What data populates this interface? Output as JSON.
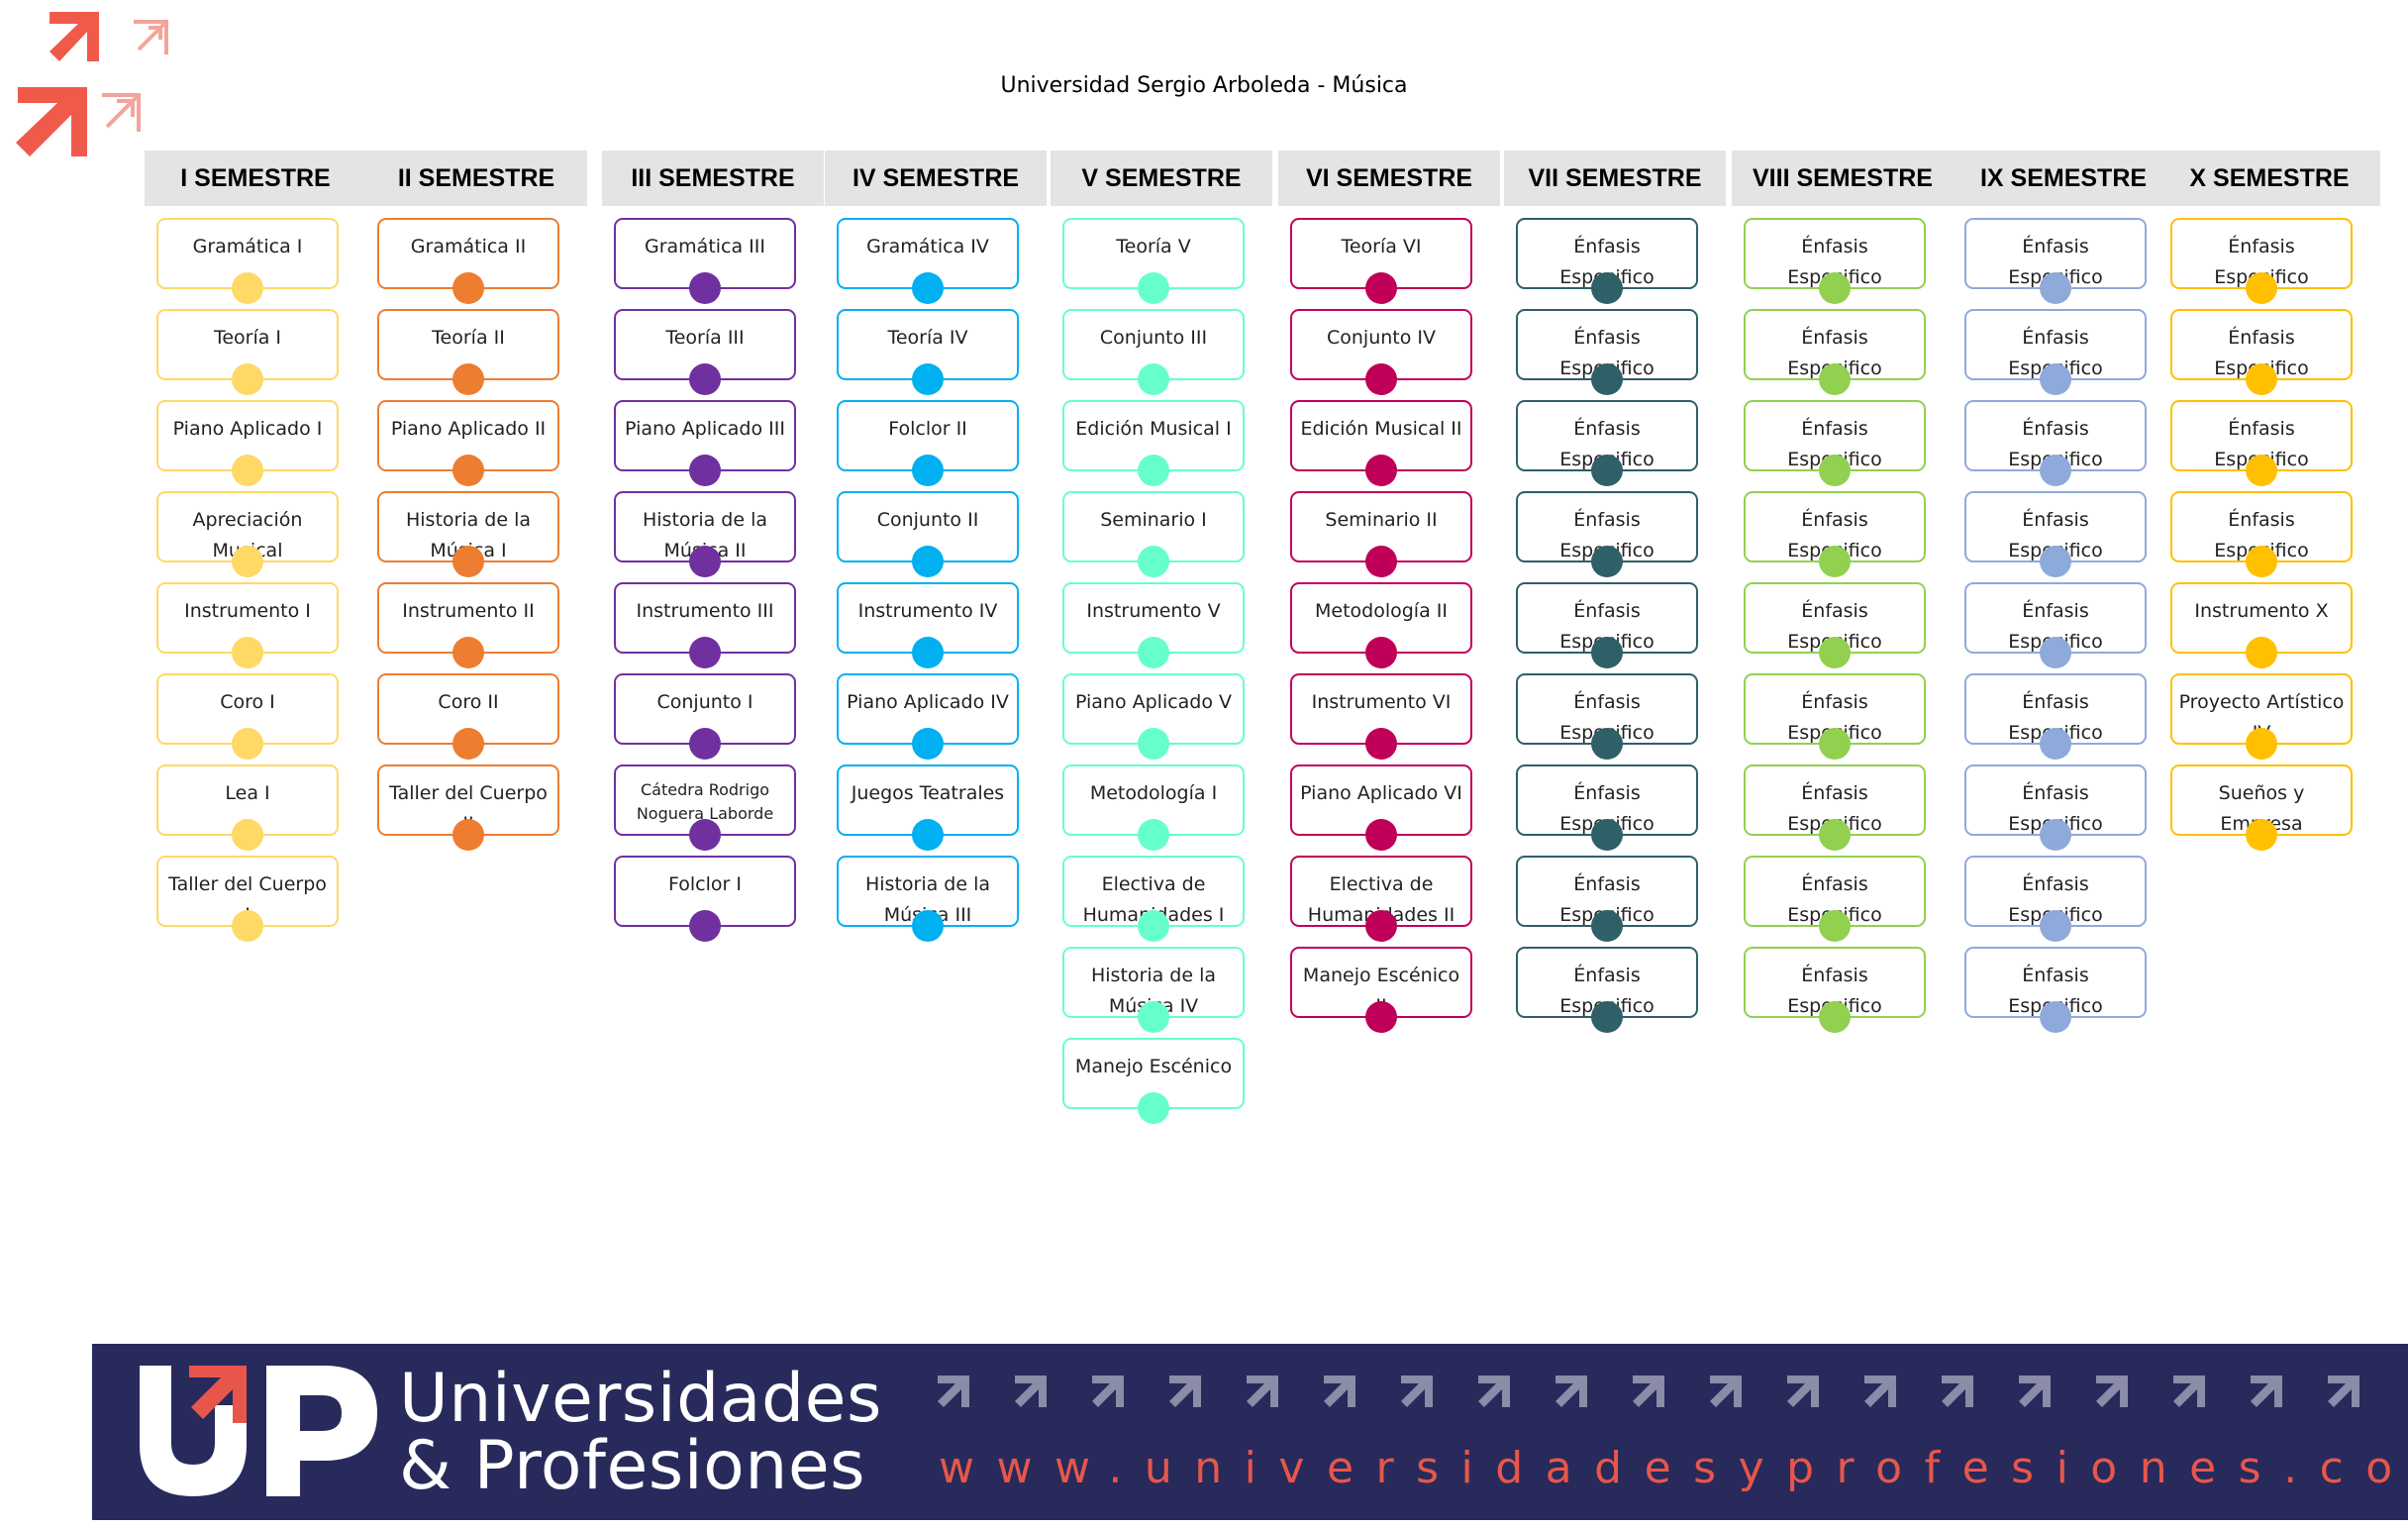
{
  "title": "Universidad Sergio Arboleda  - Música",
  "semesters": [
    {
      "name": "I SEMESTRE",
      "color": "#ffd966",
      "courses": [
        "Gramática I",
        "Teoría I",
        "Piano Aplicado I",
        "Apreciación Musical",
        "Instrumento I",
        "Coro I",
        "Lea I",
        "Taller del Cuerpo I"
      ]
    },
    {
      "name": "II SEMESTRE",
      "color": "#ed7d31",
      "courses": [
        "Gramática II",
        "Teoría II",
        "Piano Aplicado II",
        "Historia de la Música I",
        "Instrumento II",
        "Coro II",
        "Taller del Cuerpo II"
      ]
    },
    {
      "name": "III SEMESTRE",
      "color": "#7030a0",
      "courses": [
        "Gramática III",
        "Teoría III",
        "Piano Aplicado III",
        "Historia de la Música II",
        "Instrumento III",
        "Conjunto I",
        "Cátedra Rodrigo Noguera Laborde",
        "Folclor I"
      ]
    },
    {
      "name": "IV SEMESTRE",
      "color": "#00b0f0",
      "courses": [
        "Gramática IV",
        "Teoría IV",
        "Folclor II",
        "Conjunto II",
        "Instrumento IV",
        "Piano Aplicado IV",
        "Juegos Teatrales",
        "Historia de la Música III"
      ]
    },
    {
      "name": "V SEMESTRE",
      "color": "#66ffcc",
      "courses": [
        "Teoría V",
        "Conjunto III",
        "Edición Musical I",
        "Seminario I",
        "Instrumento V",
        "Piano Aplicado V",
        "Metodología I",
        "Electiva de Humanidades I",
        "Historia de la Música IV",
        "Manejo Escénico"
      ]
    },
    {
      "name": "VI SEMESTRE",
      "color": "#c00058",
      "courses": [
        "Teoría VI",
        "Conjunto IV",
        "Edición Musical II",
        "Seminario II",
        "Metodología II",
        "Instrumento VI",
        "Piano Aplicado VI",
        "Electiva de Humanidades II",
        "Manejo Escénico II"
      ]
    },
    {
      "name": "VII SEMESTRE",
      "color": "#2f5f67",
      "courses": [
        "Énfasis Especifico",
        "Énfasis Especifico",
        "Énfasis Especifico",
        "Énfasis Especifico",
        "Énfasis Especifico",
        "Énfasis Especifico",
        "Énfasis Especifico",
        "Énfasis Especifico",
        "Énfasis Especifico"
      ]
    },
    {
      "name": "VIII SEMESTRE",
      "color": "#92d050",
      "courses": [
        "Énfasis Especifico",
        "Énfasis Especifico",
        "Énfasis Especifico",
        "Énfasis Especifico",
        "Énfasis Especifico",
        "Énfasis Especifico",
        "Énfasis Especifico",
        "Énfasis Especifico",
        "Énfasis Especifico"
      ]
    },
    {
      "name": "IX SEMESTRE",
      "color": "#8eaadb",
      "courses": [
        "Énfasis Especifico",
        "Énfasis Especifico",
        "Énfasis Especifico",
        "Énfasis Especifico",
        "Énfasis Especifico",
        "Énfasis Especifico",
        "Énfasis Especifico",
        "Énfasis Especifico",
        "Énfasis Especifico"
      ]
    },
    {
      "name": "X SEMESTRE",
      "color": "#ffc000",
      "courses": [
        "Énfasis Especifico",
        "Énfasis Especifico",
        "Énfasis Especifico",
        "Énfasis Especifico",
        "Instrumento X",
        "Proyecto Artístico IV",
        "Sueños y Empresa"
      ]
    }
  ],
  "footer": {
    "logo_text": "UP",
    "brand_line1": "Universidades",
    "brand_line2": "& Profesiones",
    "url": "www.universidadesyprofesiones.com",
    "bg_color": "#272a5b",
    "accent_color": "#e8564b"
  }
}
